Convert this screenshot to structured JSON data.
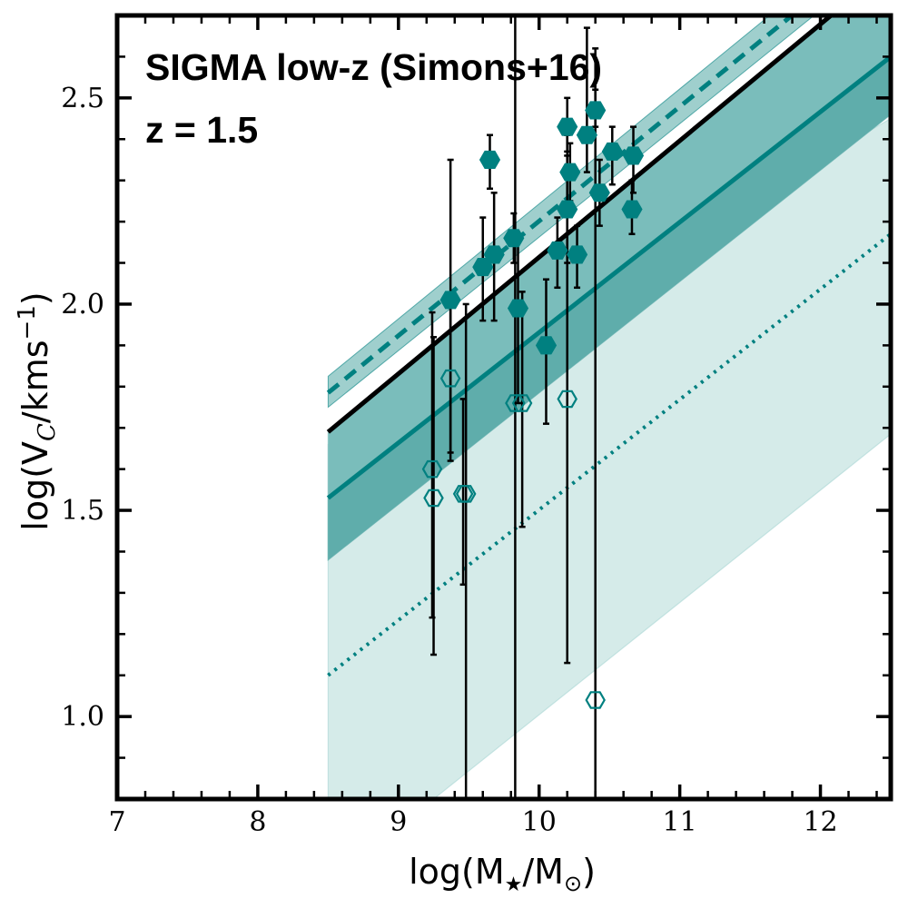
{
  "chart_data": {
    "type": "scatter",
    "title": "",
    "annotations": [
      "SIGMA low-z (Simons+16)",
      "z = 1.5"
    ],
    "xlabel": {
      "base": "log(M",
      "sub1": "★",
      "mid": "/M",
      "sub2": "⊙",
      "end": ")"
    },
    "ylabel": {
      "base": "log(V",
      "sub": "C",
      "mid": "/kms",
      "sup": "−1",
      "end": ")"
    },
    "xlim": [
      7,
      12.5
    ],
    "ylim": [
      0.8,
      2.7
    ],
    "xticks": [
      7,
      8,
      9,
      10,
      11,
      12
    ],
    "xtick_labels": [
      "7",
      "8",
      "9",
      "10",
      "11",
      "12"
    ],
    "yticks": [
      1.0,
      1.5,
      2.0,
      2.5
    ],
    "ytick_labels": [
      "1.0",
      "1.5",
      "2.0",
      "2.5"
    ],
    "x_minor_step": 0.2,
    "y_minor_step": 0.1,
    "colors": {
      "teal": "#008080",
      "band_outer": "#d5ebe9",
      "band_outer_edge": "#a9d6d3",
      "band_mid": "#7abdbb",
      "band_inner": "#5fadab",
      "band_upper": "#9fcfcd",
      "black": "#000000"
    },
    "bands": [
      {
        "name": "outer-band",
        "x": [
          8.5,
          12.5
        ],
        "lower": [
          0.8,
          1.685
        ],
        "upper": [
          1.66,
          2.45
        ],
        "lower_start_x": 9.25,
        "lower_start_y": 0.8,
        "lower_at_start": 0.6
      },
      {
        "name": "mid-band",
        "x": [
          8.5,
          12.5
        ],
        "lower": [
          1.38,
          2.46
        ],
        "upper": [
          1.69,
          2.82
        ]
      },
      {
        "name": "inner-band",
        "x": [
          8.5,
          12.5
        ],
        "lower": [
          1.38,
          2.46
        ],
        "upper": [
          1.53,
          2.6
        ]
      },
      {
        "name": "upper-band",
        "x": [
          8.5,
          12.5
        ],
        "lower": [
          1.75,
          2.85
        ],
        "upper": [
          1.825,
          2.94
        ]
      }
    ],
    "lines": [
      {
        "name": "black-solid-relation",
        "style": "solid",
        "x": [
          8.5,
          12.5
        ],
        "y": [
          1.69,
          2.82
        ]
      },
      {
        "name": "teal-solid-relation",
        "style": "solid",
        "x": [
          8.5,
          12.5
        ],
        "y": [
          1.53,
          2.6
        ]
      },
      {
        "name": "teal-dashed-relation",
        "style": "dashed",
        "x": [
          8.5,
          12.5
        ],
        "y": [
          1.785,
          2.895
        ]
      },
      {
        "name": "teal-dotted-relation",
        "style": "dotted",
        "x": [
          8.5,
          12.5
        ],
        "y": [
          1.1,
          2.17
        ]
      }
    ],
    "series": [
      {
        "name": "filled",
        "marker": "hexagon-filled",
        "points": [
          {
            "x": 9.37,
            "y": 2.01,
            "yerr_low": 1.64,
            "yerr_high": 2.35
          },
          {
            "x": 9.6,
            "y": 2.09,
            "yerr_low": 1.96,
            "yerr_high": 2.21
          },
          {
            "x": 9.65,
            "y": 2.35,
            "yerr_low": 2.28,
            "yerr_high": 2.41
          },
          {
            "x": 9.68,
            "y": 2.12,
            "yerr_low": 1.96,
            "yerr_high": 2.27
          },
          {
            "x": 9.82,
            "y": 2.16,
            "yerr_low": 2.1,
            "yerr_high": 2.22
          },
          {
            "x": 9.85,
            "y": 1.99,
            "yerr_low": 1.76,
            "yerr_high": 2.17
          },
          {
            "x": 10.05,
            "y": 1.9,
            "yerr_low": 1.71,
            "yerr_high": 2.06
          },
          {
            "x": 10.13,
            "y": 2.13,
            "yerr_low": 2.04,
            "yerr_high": 2.21
          },
          {
            "x": 10.2,
            "y": 2.43,
            "yerr_low": 2.37,
            "yerr_high": 2.5
          },
          {
            "x": 10.2,
            "y": 2.23,
            "yerr_low": 2.1,
            "yerr_high": 2.36
          },
          {
            "x": 10.22,
            "y": 2.32,
            "yerr_low": 2.25,
            "yerr_high": 2.39
          },
          {
            "x": 10.27,
            "y": 2.12,
            "yerr_low": 2.04,
            "yerr_high": 2.19
          },
          {
            "x": 10.34,
            "y": 2.41,
            "yerr_low": 2.32,
            "yerr_high": 2.67
          },
          {
            "x": 10.4,
            "y": 2.47,
            "yerr_low": 2.43,
            "yerr_high": 2.52
          },
          {
            "x": 10.43,
            "y": 2.27,
            "yerr_low": 2.19,
            "yerr_high": 2.35
          },
          {
            "x": 10.52,
            "y": 2.37,
            "yerr_low": 2.29,
            "yerr_high": 2.43
          },
          {
            "x": 10.67,
            "y": 2.36,
            "yerr_low": 2.27,
            "yerr_high": 2.43
          },
          {
            "x": 10.66,
            "y": 2.23,
            "yerr_low": 2.17,
            "yerr_high": 2.3
          }
        ]
      },
      {
        "name": "open",
        "marker": "hexagon-open",
        "points": [
          {
            "x": 9.24,
            "y": 1.6,
            "yerr_low": 1.24,
            "yerr_high": 1.98
          },
          {
            "x": 9.25,
            "y": 1.53,
            "yerr_low": 1.15,
            "yerr_high": 1.92
          },
          {
            "x": 9.37,
            "y": 1.82,
            "yerr_low": 1.62,
            "yerr_high": 2.0
          },
          {
            "x": 9.46,
            "y": 1.54,
            "yerr_low": 1.32,
            "yerr_high": 1.77
          },
          {
            "x": 9.48,
            "y": 1.54,
            "yerr_low": 0.8,
            "yerr_high": 2.0
          },
          {
            "x": 9.83,
            "y": 1.76,
            "yerr_low": 0.8,
            "yerr_high": 2.7
          },
          {
            "x": 9.88,
            "y": 1.76,
            "yerr_low": 1.46,
            "yerr_high": 2.03
          },
          {
            "x": 10.2,
            "y": 1.77,
            "yerr_low": 1.13,
            "yerr_high": 2.41
          },
          {
            "x": 10.4,
            "y": 1.04,
            "yerr_low": 0.8,
            "yerr_high": 2.62
          }
        ]
      }
    ]
  }
}
